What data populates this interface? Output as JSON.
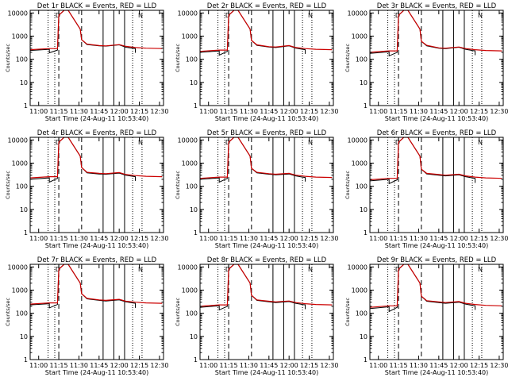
{
  "chart_data": [
    {
      "type": "line",
      "title": "Det 1r BLACK = Events, RED = LLD",
      "xlabel": "Start Time (24-Aug-11 10:53:40)",
      "ylabel": "Counts/sec",
      "xscale": "time",
      "yscale": "log",
      "xlim": [
        "10:53:40",
        "12:33:00"
      ],
      "ylim": [
        1,
        13000
      ],
      "x_ticks": [
        "11:00",
        "11:15",
        "11:30",
        "11:45",
        "12:00",
        "12:15",
        "12:30"
      ],
      "y_ticks": [
        "1",
        "10",
        "100",
        "1000",
        "10000"
      ],
      "markers": [
        "D",
        "N"
      ],
      "series": [
        {
          "color": "#000000",
          "x": [
            "10:53:40",
            "11:08",
            "11:08",
            "11:14",
            "11:15",
            "11:19",
            "11:22",
            "11:31",
            "11:32",
            "11:36",
            "11:45",
            "11:50",
            "12:00",
            "12:05",
            "12:10",
            "12:12",
            "12:12"
          ],
          "y": [
            240,
            270,
            190,
            250,
            8000,
            13000,
            13000,
            2000,
            700,
            430,
            380,
            370,
            420,
            330,
            300,
            290,
            190
          ]
        },
        {
          "color": "#cc0000",
          "x": [
            "10:53:40",
            "11:08",
            "11:14",
            "11:15",
            "11:19",
            "11:22",
            "11:31",
            "11:32",
            "11:36",
            "11:45",
            "11:50",
            "12:00",
            "12:05",
            "12:12",
            "12:20",
            "12:32"
          ],
          "y": [
            260,
            290,
            290,
            8000,
            13000,
            13000,
            2000,
            700,
            450,
            390,
            380,
            430,
            360,
            320,
            300,
            290
          ]
        }
      ]
    },
    {
      "type": "line",
      "title": "Det 2r BLACK = Events, RED = LLD",
      "xlabel": "Start Time (24-Aug-11 10:53:40)",
      "ylabel": "Counts/sec",
      "xscale": "time",
      "yscale": "log",
      "xlim": [
        "10:53:40",
        "12:33:00"
      ],
      "ylim": [
        1,
        13000
      ],
      "x_ticks": [
        "11:00",
        "11:15",
        "11:30",
        "11:45",
        "12:00",
        "12:15",
        "12:30"
      ],
      "y_ticks": [
        "1",
        "10",
        "100",
        "1000",
        "10000"
      ],
      "markers": [
        "D",
        "N"
      ],
      "series": [
        {
          "color": "#000000",
          "x": [
            "10:53:40",
            "11:08",
            "11:08",
            "11:14",
            "11:15",
            "11:19",
            "11:22",
            "11:31",
            "11:32",
            "11:36",
            "11:45",
            "11:50",
            "12:00",
            "12:05",
            "12:10",
            "12:12",
            "12:12"
          ],
          "y": [
            200,
            230,
            150,
            220,
            8000,
            13000,
            13000,
            2000,
            650,
            400,
            340,
            320,
            380,
            300,
            270,
            260,
            170
          ]
        },
        {
          "color": "#cc0000",
          "x": [
            "10:53:40",
            "11:08",
            "11:14",
            "11:15",
            "11:19",
            "11:22",
            "11:31",
            "11:32",
            "11:36",
            "11:45",
            "11:50",
            "12:00",
            "12:05",
            "12:12",
            "12:20",
            "12:32"
          ],
          "y": [
            220,
            250,
            250,
            8000,
            13000,
            13000,
            2000,
            650,
            420,
            350,
            340,
            390,
            320,
            290,
            270,
            260
          ]
        }
      ]
    },
    {
      "type": "line",
      "title": "Det 3r BLACK = Events, RED = LLD",
      "xlabel": "Start Time (24-Aug-11 10:53:40)",
      "ylabel": "Counts/sec",
      "xscale": "time",
      "yscale": "log",
      "xlim": [
        "10:53:40",
        "12:33:00"
      ],
      "ylim": [
        1,
        13000
      ],
      "x_ticks": [
        "11:00",
        "11:15",
        "11:30",
        "11:45",
        "12:00",
        "12:15",
        "12:30"
      ],
      "y_ticks": [
        "1",
        "10",
        "100",
        "1000",
        "10000"
      ],
      "markers": [
        "D",
        "N"
      ],
      "series": [
        {
          "color": "#000000",
          "x": [
            "10:53:40",
            "11:08",
            "11:08",
            "11:14",
            "11:15",
            "11:19",
            "11:22",
            "11:31",
            "11:32",
            "11:36",
            "11:45",
            "11:50",
            "12:00",
            "12:05",
            "12:10",
            "12:12",
            "12:12"
          ],
          "y": [
            180,
            210,
            140,
            200,
            8000,
            13000,
            13000,
            2000,
            600,
            380,
            300,
            290,
            330,
            270,
            240,
            230,
            150
          ]
        },
        {
          "color": "#cc0000",
          "x": [
            "10:53:40",
            "11:08",
            "11:14",
            "11:15",
            "11:19",
            "11:22",
            "11:31",
            "11:32",
            "11:36",
            "11:45",
            "11:50",
            "12:00",
            "12:05",
            "12:12",
            "12:20",
            "12:32"
          ],
          "y": [
            200,
            230,
            230,
            8000,
            13000,
            13000,
            2000,
            600,
            400,
            310,
            300,
            340,
            290,
            260,
            240,
            230
          ]
        }
      ]
    },
    {
      "type": "line",
      "title": "Det 4r BLACK = Events, RED = LLD",
      "xlabel": "Start Time (24-Aug-11 10:53:40)",
      "ylabel": "Counts/sec",
      "xscale": "time",
      "yscale": "log",
      "xlim": [
        "10:53:40",
        "12:33:00"
      ],
      "ylim": [
        1,
        13000
      ],
      "x_ticks": [
        "11:00",
        "11:15",
        "11:30",
        "11:45",
        "12:00",
        "12:15",
        "12:30"
      ],
      "y_ticks": [
        "1",
        "10",
        "100",
        "1000",
        "10000"
      ],
      "markers": [
        "D",
        "N"
      ],
      "series": [
        {
          "color": "#000000",
          "x": [
            "10:53:40",
            "11:08",
            "11:08",
            "11:14",
            "11:15",
            "11:19",
            "11:22",
            "11:31",
            "11:32",
            "11:36",
            "11:45",
            "11:50",
            "12:00",
            "12:05",
            "12:10",
            "12:12",
            "12:12"
          ],
          "y": [
            200,
            230,
            150,
            220,
            8000,
            13000,
            13000,
            2000,
            650,
            380,
            340,
            330,
            370,
            300,
            270,
            260,
            170
          ]
        },
        {
          "color": "#cc0000",
          "x": [
            "10:53:40",
            "11:08",
            "11:14",
            "11:15",
            "11:19",
            "11:22",
            "11:31",
            "11:32",
            "11:36",
            "11:45",
            "11:50",
            "12:00",
            "12:05",
            "12:12",
            "12:20",
            "12:32"
          ],
          "y": [
            230,
            260,
            260,
            8000,
            13000,
            13000,
            2000,
            650,
            400,
            360,
            350,
            390,
            320,
            290,
            270,
            260
          ]
        }
      ]
    },
    {
      "type": "line",
      "title": "Det 5r BLACK = Events, RED = LLD",
      "xlabel": "Start Time (24-Aug-11 10:53:40)",
      "ylabel": "Counts/sec",
      "xscale": "time",
      "yscale": "log",
      "xlim": [
        "10:53:40",
        "12:33:00"
      ],
      "ylim": [
        1,
        13000
      ],
      "x_ticks": [
        "11:00",
        "11:15",
        "11:30",
        "11:45",
        "12:00",
        "12:15",
        "12:30"
      ],
      "y_ticks": [
        "1",
        "10",
        "100",
        "1000",
        "10000"
      ],
      "markers": [
        "D",
        "N"
      ],
      "series": [
        {
          "color": "#000000",
          "x": [
            "10:53:40",
            "11:08",
            "11:08",
            "11:14",
            "11:15",
            "11:19",
            "11:22",
            "11:31",
            "11:32",
            "11:36",
            "11:45",
            "11:50",
            "12:00",
            "12:05",
            "12:10",
            "12:12",
            "12:12"
          ],
          "y": [
            200,
            230,
            150,
            220,
            8000,
            13000,
            13000,
            2000,
            600,
            380,
            330,
            310,
            340,
            280,
            250,
            240,
            160
          ]
        },
        {
          "color": "#cc0000",
          "x": [
            "10:53:40",
            "11:08",
            "11:14",
            "11:15",
            "11:19",
            "11:22",
            "11:31",
            "11:32",
            "11:36",
            "11:45",
            "11:50",
            "12:00",
            "12:05",
            "12:12",
            "12:20",
            "12:32"
          ],
          "y": [
            220,
            250,
            250,
            8000,
            13000,
            13000,
            2000,
            600,
            400,
            350,
            330,
            360,
            300,
            270,
            250,
            240
          ]
        }
      ]
    },
    {
      "type": "line",
      "title": "Det 6r BLACK = Events, RED = LLD",
      "xlabel": "Start Time (24-Aug-11 10:53:40)",
      "ylabel": "Counts/sec",
      "xscale": "time",
      "yscale": "log",
      "xlim": [
        "10:53:40",
        "12:33:00"
      ],
      "ylim": [
        1,
        13000
      ],
      "x_ticks": [
        "11:00",
        "11:15",
        "11:30",
        "11:45",
        "12:00",
        "12:15",
        "12:30"
      ],
      "y_ticks": [
        "1",
        "10",
        "100",
        "1000",
        "10000"
      ],
      "markers": [
        "D",
        "N"
      ],
      "series": [
        {
          "color": "#000000",
          "x": [
            "10:53:40",
            "11:08",
            "11:08",
            "11:14",
            "11:15",
            "11:19",
            "11:22",
            "11:31",
            "11:32",
            "11:36",
            "11:45",
            "11:50",
            "12:00",
            "12:05",
            "12:10",
            "12:12",
            "12:12"
          ],
          "y": [
            170,
            200,
            130,
            190,
            8000,
            13000,
            13000,
            2000,
            550,
            340,
            300,
            280,
            310,
            260,
            230,
            220,
            140
          ]
        },
        {
          "color": "#cc0000",
          "x": [
            "10:53:40",
            "11:08",
            "11:14",
            "11:15",
            "11:19",
            "11:22",
            "11:31",
            "11:32",
            "11:36",
            "11:45",
            "11:50",
            "12:00",
            "12:05",
            "12:12",
            "12:20",
            "12:32"
          ],
          "y": [
            190,
            220,
            220,
            8000,
            13000,
            13000,
            2000,
            550,
            360,
            320,
            300,
            330,
            280,
            250,
            230,
            220
          ]
        }
      ]
    },
    {
      "type": "line",
      "title": "Det 7r BLACK = Events, RED = LLD",
      "xlabel": "Start Time (24-Aug-11 10:53:40)",
      "ylabel": "Counts/sec",
      "xscale": "time",
      "yscale": "log",
      "xlim": [
        "10:53:40",
        "12:33:00"
      ],
      "ylim": [
        1,
        13000
      ],
      "x_ticks": [
        "11:00",
        "11:15",
        "11:30",
        "11:45",
        "12:00",
        "12:15",
        "12:30"
      ],
      "y_ticks": [
        "1",
        "10",
        "100",
        "1000",
        "10000"
      ],
      "markers": [
        "D",
        "N"
      ],
      "series": [
        {
          "color": "#000000",
          "x": [
            "10:53:40",
            "11:08",
            "11:08",
            "11:14",
            "11:15",
            "11:19",
            "11:22",
            "11:31",
            "11:32",
            "11:36",
            "11:45",
            "11:50",
            "12:00",
            "12:05",
            "12:10",
            "12:12",
            "12:12"
          ],
          "y": [
            230,
            260,
            170,
            240,
            8000,
            13000,
            13000,
            2000,
            700,
            420,
            360,
            340,
            380,
            310,
            280,
            270,
            170
          ]
        },
        {
          "color": "#cc0000",
          "x": [
            "10:53:40",
            "11:08",
            "11:14",
            "11:15",
            "11:19",
            "11:22",
            "11:31",
            "11:32",
            "11:36",
            "11:45",
            "11:50",
            "12:00",
            "12:05",
            "12:12",
            "12:20",
            "12:32"
          ],
          "y": [
            250,
            280,
            280,
            8000,
            13000,
            13000,
            2000,
            700,
            440,
            380,
            360,
            400,
            330,
            300,
            280,
            270
          ]
        }
      ]
    },
    {
      "type": "line",
      "title": "Det 8r BLACK = Events, RED = LLD",
      "xlabel": "Start Time (24-Aug-11 10:53:40)",
      "ylabel": "Counts/sec",
      "xscale": "time",
      "yscale": "log",
      "xlim": [
        "10:53:40",
        "12:33:00"
      ],
      "ylim": [
        1,
        13000
      ],
      "x_ticks": [
        "11:00",
        "11:15",
        "11:30",
        "11:45",
        "12:00",
        "12:15",
        "12:30"
      ],
      "y_ticks": [
        "1",
        "10",
        "100",
        "1000",
        "10000"
      ],
      "markers": [
        "D",
        "N"
      ],
      "series": [
        {
          "color": "#000000",
          "x": [
            "10:53:40",
            "11:08",
            "11:08",
            "11:14",
            "11:15",
            "11:19",
            "11:22",
            "11:31",
            "11:32",
            "11:36",
            "11:45",
            "11:50",
            "12:00",
            "12:05",
            "12:10",
            "12:12",
            "12:12"
          ],
          "y": [
            180,
            210,
            140,
            200,
            8000,
            13000,
            13000,
            2000,
            600,
            360,
            310,
            290,
            320,
            270,
            240,
            230,
            150
          ]
        },
        {
          "color": "#cc0000",
          "x": [
            "10:53:40",
            "11:08",
            "11:14",
            "11:15",
            "11:19",
            "11:22",
            "11:31",
            "11:32",
            "11:36",
            "11:45",
            "11:50",
            "12:00",
            "12:05",
            "12:12",
            "12:20",
            "12:32"
          ],
          "y": [
            200,
            230,
            230,
            8000,
            13000,
            13000,
            2000,
            600,
            380,
            330,
            310,
            340,
            290,
            260,
            240,
            230
          ]
        }
      ]
    },
    {
      "type": "line",
      "title": "Det 9r BLACK = Events, RED = LLD",
      "xlabel": "Start Time (24-Aug-11 10:53:40)",
      "ylabel": "Counts/sec",
      "xscale": "time",
      "yscale": "log",
      "xlim": [
        "10:53:40",
        "12:33:00"
      ],
      "ylim": [
        1,
        13000
      ],
      "x_ticks": [
        "11:00",
        "11:15",
        "11:30",
        "11:45",
        "12:00",
        "12:15",
        "12:30"
      ],
      "y_ticks": [
        "1",
        "10",
        "100",
        "1000",
        "10000"
      ],
      "markers": [
        "D",
        "N"
      ],
      "series": [
        {
          "color": "#000000",
          "x": [
            "10:53:40",
            "11:08",
            "11:08",
            "11:14",
            "11:15",
            "11:19",
            "11:22",
            "11:31",
            "11:32",
            "11:36",
            "11:45",
            "11:50",
            "12:00",
            "12:05",
            "12:10",
            "12:12",
            "12:12"
          ],
          "y": [
            160,
            190,
            120,
            180,
            8000,
            13000,
            13000,
            2000,
            550,
            330,
            290,
            270,
            300,
            250,
            220,
            210,
            140
          ]
        },
        {
          "color": "#cc0000",
          "x": [
            "10:53:40",
            "11:08",
            "11:14",
            "11:15",
            "11:19",
            "11:22",
            "11:31",
            "11:32",
            "11:36",
            "11:45",
            "11:50",
            "12:00",
            "12:05",
            "12:12",
            "12:20",
            "12:32"
          ],
          "y": [
            180,
            210,
            210,
            8000,
            13000,
            13000,
            2000,
            550,
            350,
            310,
            290,
            320,
            270,
            240,
            220,
            210
          ]
        }
      ]
    }
  ],
  "vlines": {
    "dotted": [
      "11:07",
      "11:12",
      "12:10",
      "12:17"
    ],
    "dashed": [
      "11:15",
      "11:32"
    ],
    "solid": [
      "11:48",
      "11:56",
      "12:04"
    ]
  }
}
